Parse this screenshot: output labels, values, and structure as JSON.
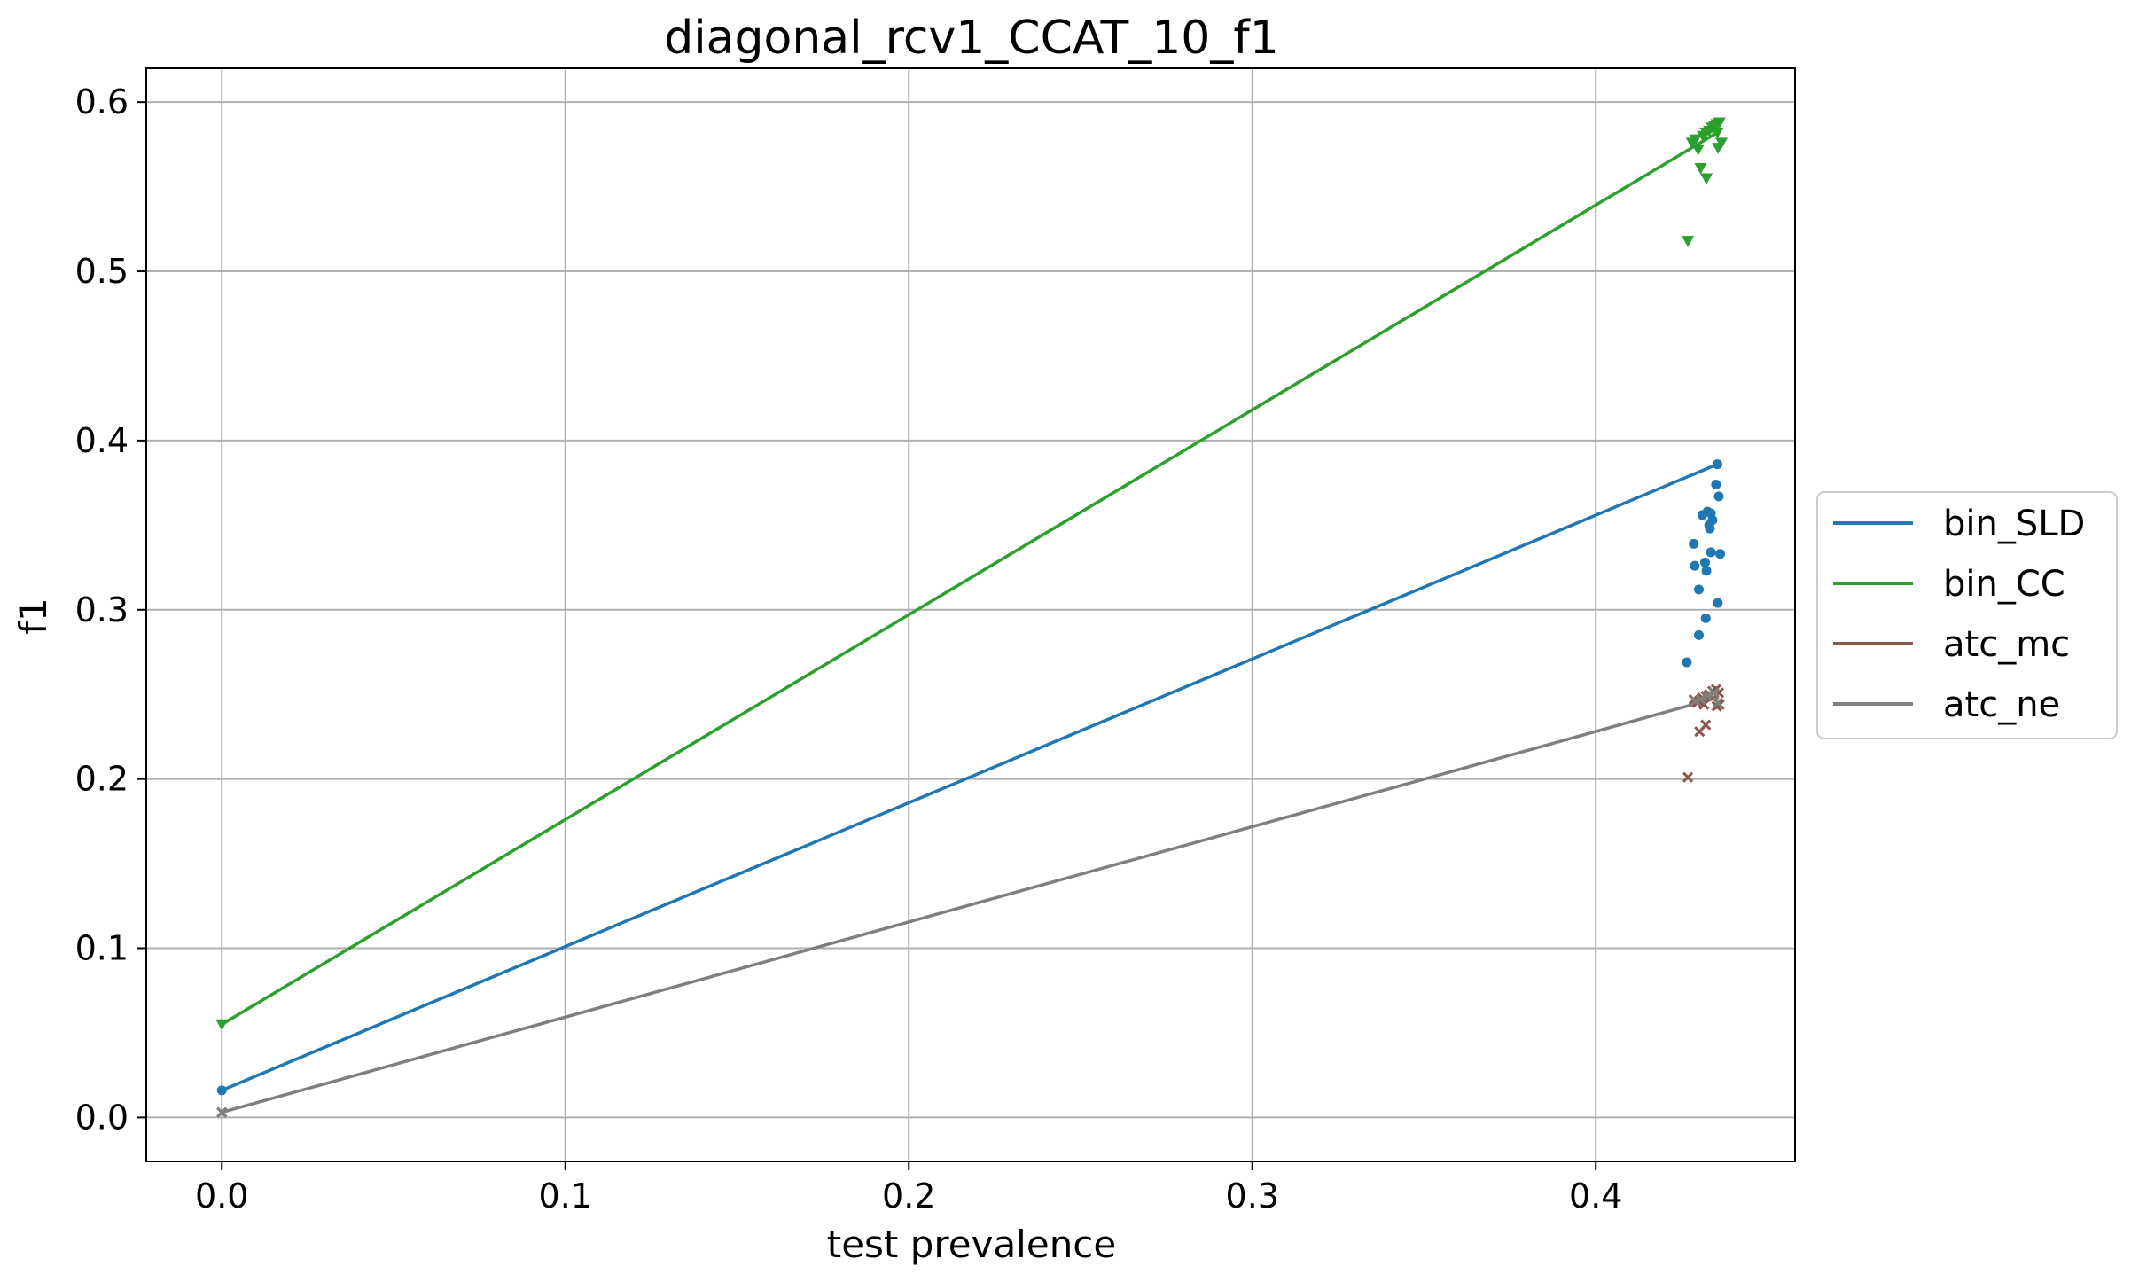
{
  "chart_data": {
    "type": "line",
    "title": "diagonal_rcv1_CCAT_10_f1",
    "xlabel": "test prevalence",
    "ylabel": "f1",
    "xlim": [
      -0.022,
      0.458
    ],
    "ylim": [
      -0.026,
      0.62
    ],
    "xticks": [
      0.0,
      0.1,
      0.2,
      0.3,
      0.4
    ],
    "xtick_labels": [
      "0.0",
      "0.1",
      "0.2",
      "0.3",
      "0.4"
    ],
    "yticks": [
      0.0,
      0.1,
      0.2,
      0.3,
      0.4,
      0.5,
      0.6
    ],
    "ytick_labels": [
      "0.0",
      "0.1",
      "0.2",
      "0.3",
      "0.4",
      "0.5",
      "0.6"
    ],
    "grid": true,
    "legend_position": "center-right-outside",
    "series": [
      {
        "name": "bin_SLD",
        "color": "#1f77b4",
        "marker": "circle",
        "line": [
          [
            0.0,
            0.016
          ],
          [
            0.4354,
            0.386
          ]
        ],
        "points": [
          [
            0.0,
            0.016
          ],
          [
            0.4354,
            0.386
          ],
          [
            0.435,
            0.374
          ],
          [
            0.4358,
            0.367
          ],
          [
            0.4325,
            0.358
          ],
          [
            0.4335,
            0.357
          ],
          [
            0.431,
            0.356
          ],
          [
            0.434,
            0.353
          ],
          [
            0.433,
            0.35
          ],
          [
            0.4332,
            0.348
          ],
          [
            0.4285,
            0.339
          ],
          [
            0.4335,
            0.334
          ],
          [
            0.4362,
            0.333
          ],
          [
            0.4318,
            0.328
          ],
          [
            0.4288,
            0.326
          ],
          [
            0.4322,
            0.323
          ],
          [
            0.43,
            0.312
          ],
          [
            0.4355,
            0.304
          ],
          [
            0.432,
            0.295
          ],
          [
            0.43,
            0.285
          ],
          [
            0.4265,
            0.269
          ]
        ]
      },
      {
        "name": "bin_CC",
        "color": "#2ca02c",
        "marker": "triangle_down",
        "line": [
          [
            0.0,
            0.055
          ],
          [
            0.4354,
            0.582
          ]
        ],
        "points": [
          [
            0.0,
            0.055
          ],
          [
            0.436,
            0.588
          ],
          [
            0.4352,
            0.587
          ],
          [
            0.4345,
            0.586
          ],
          [
            0.4338,
            0.585
          ],
          [
            0.433,
            0.583
          ],
          [
            0.432,
            0.582
          ],
          [
            0.4312,
            0.58
          ],
          [
            0.4354,
            0.582
          ],
          [
            0.429,
            0.578
          ],
          [
            0.428,
            0.576
          ],
          [
            0.4366,
            0.576
          ],
          [
            0.4356,
            0.573
          ],
          [
            0.4298,
            0.572
          ],
          [
            0.4305,
            0.561
          ],
          [
            0.4322,
            0.555
          ],
          [
            0.4268,
            0.518
          ]
        ]
      },
      {
        "name": "atc_mc",
        "color": "#8c564b",
        "marker": "x",
        "line": null,
        "points": [
          [
            0.0,
            0.003
          ],
          [
            0.435,
            0.253
          ],
          [
            0.434,
            0.252
          ],
          [
            0.4358,
            0.251
          ],
          [
            0.433,
            0.25
          ],
          [
            0.432,
            0.249
          ],
          [
            0.431,
            0.248
          ],
          [
            0.4285,
            0.247
          ],
          [
            0.43,
            0.246
          ],
          [
            0.4295,
            0.245
          ],
          [
            0.4315,
            0.244
          ],
          [
            0.436,
            0.244
          ],
          [
            0.4352,
            0.243
          ],
          [
            0.432,
            0.232
          ],
          [
            0.4302,
            0.228
          ],
          [
            0.4268,
            0.201
          ]
        ]
      },
      {
        "name": "atc_ne",
        "color": "#7f7f7f",
        "marker": "x",
        "line": [
          [
            0.0,
            0.003
          ],
          [
            0.4354,
            0.248
          ]
        ],
        "points": [
          [
            0.0,
            0.003
          ],
          [
            0.4345,
            0.251
          ],
          [
            0.4325,
            0.249
          ],
          [
            0.4305,
            0.247
          ],
          [
            0.429,
            0.246
          ],
          [
            0.4355,
            0.245
          ]
        ]
      }
    ]
  }
}
